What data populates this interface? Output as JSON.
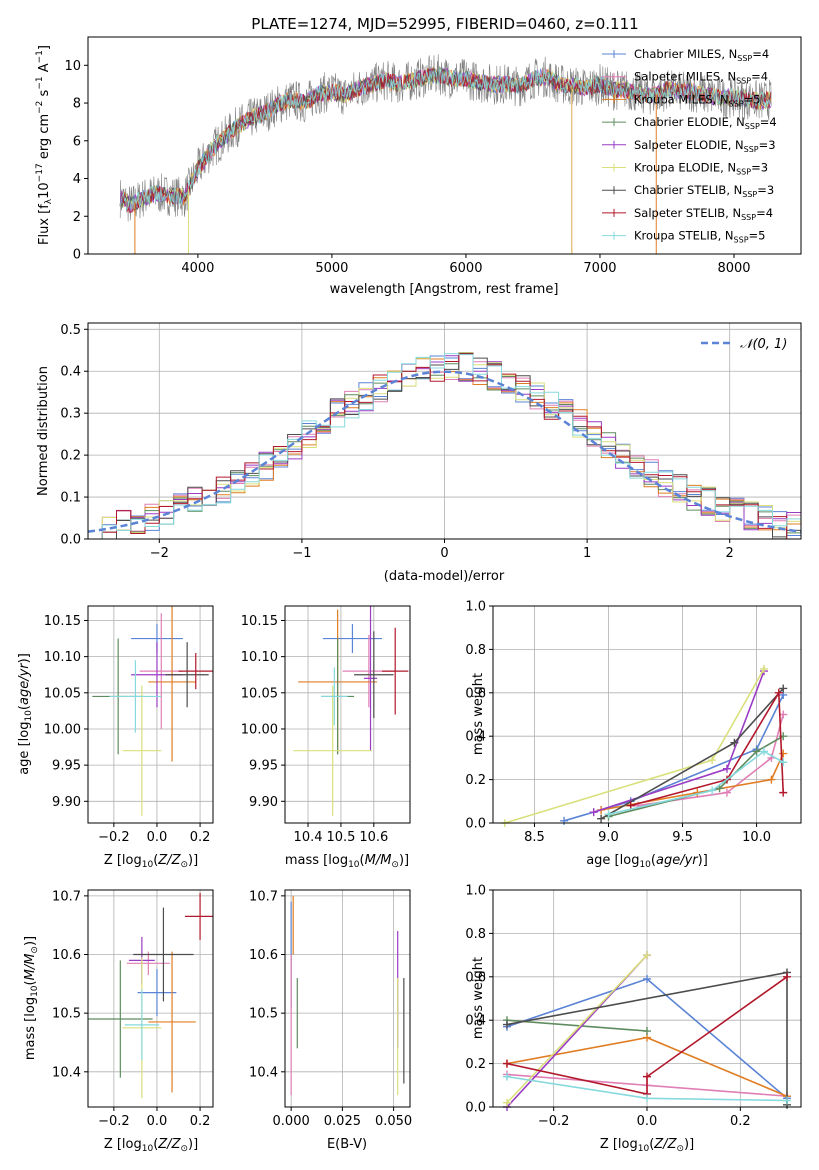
{
  "figure": {
    "title": "PLATE=1274, MJD=52995, FIBERID=0460, z=0.111"
  },
  "models": [
    {
      "name": "Chabrier MILES, N$_{SSP}$=4",
      "label_main": "Chabrier MILES, N",
      "label_sub": "SSP",
      "label_tail": "=4",
      "color": "#5b84d6"
    },
    {
      "name": "Salpeter MILES, N$_{SSP}$=4",
      "label_main": "Salpeter MILES, N",
      "label_sub": "SSP",
      "label_tail": "=4",
      "color": "#e07fb5"
    },
    {
      "name": "Kroupa MILES, N$_{SSP}$=5",
      "label_main": "Kroupa MILES, N",
      "label_sub": "SSP",
      "label_tail": "=5",
      "color": "#e07d22"
    },
    {
      "name": "Chabrier ELODIE, N$_{SSP}$=4",
      "label_main": "Chabrier ELODIE, N",
      "label_sub": "SSP",
      "label_tail": "=4",
      "color": "#5f8c5f"
    },
    {
      "name": "Salpeter ELODIE, N$_{SSP}$=3",
      "label_main": "Salpeter ELODIE, N",
      "label_sub": "SSP",
      "label_tail": "=3",
      "color": "#9b3cc4"
    },
    {
      "name": "Kroupa ELODIE, N$_{SSP}$=3",
      "label_main": "Kroupa ELODIE, N",
      "label_sub": "SSP",
      "label_tail": "=3",
      "color": "#d9e07a"
    },
    {
      "name": "Chabrier STELIB, N$_{SSP}$=3",
      "label_main": "Chabrier STELIB, N",
      "label_sub": "SSP",
      "label_tail": "=3",
      "color": "#4d4d4d"
    },
    {
      "name": "Salpeter STELIB, N$_{SSP}$=4",
      "label_main": "Salpeter STELIB, N",
      "label_sub": "SSP",
      "label_tail": "=4",
      "color": "#b2182b"
    },
    {
      "name": "Kroupa STELIB, N$_{SSP}$=5",
      "label_main": "Kroupa STELIB, N",
      "label_sub": "SSP",
      "label_tail": "=5",
      "color": "#86d9dd"
    }
  ],
  "chart_data": [
    {
      "id": "spectrum",
      "type": "line",
      "xlabel": "wavelength [Angstrom, rest frame]",
      "ylabel": "Flux [f$_\\lambda$10$^{-17}$ erg cm$^{-2}$ s$^{-1}$ A$^{-1}$]",
      "ylabel_parts": [
        "Flux [f",
        "λ",
        "10",
        "−17",
        " erg cm",
        "−2",
        " s",
        "−1",
        " A",
        "−1",
        "]"
      ],
      "xlim": [
        3180,
        8500
      ],
      "ylim": [
        0,
        11.5
      ],
      "xticks": [
        4000,
        5000,
        6000,
        7000,
        8000
      ],
      "yticks": [
        0,
        2,
        4,
        6,
        8,
        10
      ],
      "legend": "top-right",
      "data_color": "#808080",
      "data_envelope": {
        "x": [
          3420,
          3500,
          3600,
          3700,
          3800,
          3900,
          4000,
          4100,
          4200,
          4300,
          4400,
          4500,
          4600,
          4700,
          4800,
          4900,
          5000,
          5100,
          5200,
          5300,
          5400,
          5500,
          5600,
          5700,
          5800,
          5900,
          6000,
          6100,
          6200,
          6300,
          6400,
          6500,
          6600,
          6700,
          6800,
          6900,
          7000,
          7100,
          7200,
          7300,
          7400,
          7500,
          7600,
          7700,
          7800,
          7900,
          8000,
          8100,
          8200,
          8280
        ],
        "y": [
          3.0,
          2.6,
          3.0,
          3.2,
          3.1,
          3.0,
          4.5,
          5.5,
          6.2,
          6.8,
          7.2,
          7.5,
          7.9,
          8.2,
          8.0,
          8.5,
          8.6,
          8.4,
          8.8,
          9.0,
          9.2,
          9.0,
          9.2,
          9.4,
          9.5,
          9.3,
          9.3,
          9.1,
          9.0,
          9.0,
          8.9,
          9.3,
          9.4,
          9.0,
          8.9,
          8.8,
          9.0,
          8.7,
          8.7,
          8.5,
          8.4,
          8.7,
          8.6,
          8.6,
          8.4,
          8.3,
          8.3,
          8.2,
          8.1,
          8.2
        ]
      }
    },
    {
      "id": "residuals",
      "type": "area",
      "xlabel": "(data-model)/error",
      "ylabel": "Normed distribution",
      "xlim": [
        -2.5,
        2.5
      ],
      "ylim": [
        0,
        0.515
      ],
      "xticks": [
        -2,
        -1,
        0,
        1,
        2
      ],
      "yticks": [
        0.0,
        0.1,
        0.2,
        0.3,
        0.4,
        0.5
      ],
      "grid": true,
      "legend": "top-right",
      "legend_label": "𝒩(0, 1)",
      "bin_edges_start": -2.5,
      "bin_width": 0.1,
      "hist_mean": [
        0.02,
        0.025,
        0.035,
        0.045,
        0.055,
        0.065,
        0.075,
        0.09,
        0.105,
        0.12,
        0.135,
        0.155,
        0.175,
        0.2,
        0.225,
        0.25,
        0.275,
        0.3,
        0.32,
        0.34,
        0.36,
        0.375,
        0.39,
        0.4,
        0.405,
        0.41,
        0.41,
        0.4,
        0.39,
        0.375,
        0.36,
        0.34,
        0.32,
        0.3,
        0.275,
        0.25,
        0.225,
        0.2,
        0.175,
        0.155,
        0.135,
        0.12,
        0.1,
        0.09,
        0.075,
        0.065,
        0.055,
        0.045,
        0.035,
        0.03
      ]
    },
    {
      "id": "age-vs-z",
      "type": "scatter",
      "xlabel": "Z [log$_{10}$(Z/Z$_\\odot$)]",
      "ylabel": "age  [log$_{10}$(age/yr)]",
      "xlim": [
        -0.32,
        0.26
      ],
      "ylim": [
        9.87,
        10.17
      ],
      "xticks": [
        -0.2,
        0.0,
        0.2
      ],
      "yticks": [
        9.9,
        9.95,
        10.0,
        10.05,
        10.1,
        10.15
      ],
      "grid": true,
      "points": [
        {
          "x": 0.0,
          "y": 10.125,
          "xerr": 0.12,
          "yerr": 0.02
        },
        {
          "x": 0.02,
          "y": 10.08,
          "xerr": 0.1,
          "yerr": 0.08
        },
        {
          "x": 0.07,
          "y": 10.065,
          "xerr": 0.11,
          "yerr": 0.11
        },
        {
          "x": -0.18,
          "y": 10.045,
          "xerr": 0.12,
          "yerr": 0.08
        },
        {
          "x": 0.0,
          "y": 10.075,
          "xerr": 0.12,
          "yerr": 0.045
        },
        {
          "x": -0.07,
          "y": 9.97,
          "xerr": 0.09,
          "yerr": 0.09
        },
        {
          "x": 0.14,
          "y": 10.075,
          "xerr": 0.1,
          "yerr": 0.045
        },
        {
          "x": 0.18,
          "y": 10.08,
          "xerr": 0.08,
          "yerr": 0.025
        },
        {
          "x": -0.1,
          "y": 10.045,
          "xerr": 0.12,
          "yerr": 0.05
        }
      ]
    },
    {
      "id": "age-vs-mass",
      "type": "scatter",
      "xlabel": "mass [log$_{10}$(M/M$_\\odot$)]",
      "ylabel": "",
      "xlim": [
        10.33,
        10.71
      ],
      "ylim": [
        9.87,
        10.17
      ],
      "xticks": [
        10.4,
        10.5,
        10.6
      ],
      "yticks": [
        9.9,
        9.95,
        10.0,
        10.05,
        10.1,
        10.15
      ],
      "grid": true,
      "points": [
        {
          "x": 10.535,
          "y": 10.125,
          "xerr": 0.09,
          "yerr": 0.02
        },
        {
          "x": 10.585,
          "y": 10.08,
          "xerr": 0.08,
          "yerr": 0.05
        },
        {
          "x": 10.49,
          "y": 10.065,
          "xerr": 0.12,
          "yerr": 0.1
        },
        {
          "x": 10.49,
          "y": 10.045,
          "xerr": 0.05,
          "yerr": 0.08
        },
        {
          "x": 10.59,
          "y": 10.07,
          "xerr": 0.02,
          "yerr": 0.1
        },
        {
          "x": 10.475,
          "y": 9.97,
          "xerr": 0.12,
          "yerr": 0.09
        },
        {
          "x": 10.6,
          "y": 10.075,
          "xerr": 0.06,
          "yerr": 0.06
        },
        {
          "x": 10.665,
          "y": 10.08,
          "xerr": 0.04,
          "yerr": 0.06
        },
        {
          "x": 10.48,
          "y": 10.045,
          "xerr": 0.04,
          "yerr": 0.04
        }
      ]
    },
    {
      "id": "weight-vs-age",
      "type": "line",
      "xlabel": "age  [log$_{10}$(age/yr)]",
      "ylabel": "mass weight",
      "xlim": [
        8.22,
        10.3
      ],
      "ylim": [
        0,
        1.0
      ],
      "xticks": [
        8.5,
        9.0,
        9.5,
        10.0
      ],
      "yticks": [
        0.0,
        0.2,
        0.4,
        0.6,
        0.8,
        1.0
      ],
      "grid": true,
      "series": [
        {
          "x": [
            8.7,
            9.15,
            10.0,
            10.18
          ],
          "y": [
            0.01,
            0.1,
            0.34,
            0.59
          ]
        },
        {
          "x": [
            9.2,
            9.8,
            10.1,
            10.18
          ],
          "y": [
            0.08,
            0.14,
            0.3,
            0.5
          ]
        },
        {
          "x": [
            8.95,
            9.6,
            10.1,
            10.18
          ],
          "y": [
            0.06,
            0.14,
            0.2,
            0.32
          ]
        },
        {
          "x": [
            9.0,
            9.75,
            10.0,
            10.18
          ],
          "y": [
            0.03,
            0.16,
            0.33,
            0.4
          ]
        },
        {
          "x": [
            8.9,
            9.8,
            10.05
          ],
          "y": [
            0.05,
            0.25,
            0.7
          ]
        },
        {
          "x": [
            8.3,
            9.7,
            10.05
          ],
          "y": [
            0.0,
            0.29,
            0.71
          ]
        },
        {
          "x": [
            8.95,
            9.85,
            10.18
          ],
          "y": [
            0.02,
            0.37,
            0.62
          ]
        },
        {
          "x": [
            9.15,
            9.8,
            10.15,
            10.18
          ],
          "y": [
            0.08,
            0.2,
            0.6,
            0.14
          ]
        },
        {
          "x": [
            9.0,
            9.7,
            10.05,
            10.18
          ],
          "y": [
            0.04,
            0.15,
            0.33,
            0.28
          ]
        }
      ]
    },
    {
      "id": "mass-vs-z",
      "type": "scatter",
      "xlabel": "Z [log$_{10}$(Z/Z$_\\odot$)]",
      "ylabel": "mass [log$_{10}$(M/M$_\\odot$)]",
      "xlim": [
        -0.32,
        0.26
      ],
      "ylim": [
        10.34,
        10.71
      ],
      "xticks": [
        -0.2,
        0.0,
        0.2
      ],
      "yticks": [
        10.4,
        10.5,
        10.6,
        10.7
      ],
      "grid": true,
      "points": [
        {
          "x": 0.0,
          "y": 10.535,
          "xerr": 0.09,
          "yerr": 0.04
        },
        {
          "x": -0.04,
          "y": 10.585,
          "xerr": 0.1,
          "yerr": 0.02
        },
        {
          "x": 0.07,
          "y": 10.485,
          "xerr": 0.11,
          "yerr": 0.12
        },
        {
          "x": -0.17,
          "y": 10.49,
          "xerr": 0.15,
          "yerr": 0.1
        },
        {
          "x": -0.07,
          "y": 10.59,
          "xerr": 0.06,
          "yerr": 0.04
        },
        {
          "x": -0.07,
          "y": 10.475,
          "xerr": 0.09,
          "yerr": 0.12
        },
        {
          "x": 0.03,
          "y": 10.6,
          "xerr": 0.14,
          "yerr": 0.08
        },
        {
          "x": 0.2,
          "y": 10.665,
          "xerr": 0.07,
          "yerr": 0.04
        },
        {
          "x": -0.07,
          "y": 10.48,
          "xerr": 0.08,
          "yerr": 0.06
        }
      ]
    },
    {
      "id": "mass-vs-ebv",
      "type": "scatter",
      "xlabel": "E(B-V)",
      "ylabel": "",
      "xlim": [
        -0.003,
        0.058
      ],
      "ylim": [
        10.34,
        10.71
      ],
      "xticks": [
        0.0,
        0.025,
        0.05
      ],
      "yticks": [
        10.4,
        10.5,
        10.6,
        10.7
      ],
      "grid": true,
      "points": [
        {
          "x": 0.0,
          "y": 10.6,
          "yerr": 0.09
        },
        {
          "x": 0.0,
          "y": 10.48,
          "yerr": 0.12
        },
        {
          "x": 0.001,
          "y": 10.65,
          "yerr": 0.05
        },
        {
          "x": 0.003,
          "y": 10.5,
          "yerr": 0.06
        },
        {
          "x": 0.052,
          "y": 10.54,
          "yerr": 0.1
        },
        {
          "x": 0.052,
          "y": 10.46,
          "yerr": 0.1
        },
        {
          "x": 0.055,
          "y": 10.47,
          "yerr": 0.09
        }
      ]
    },
    {
      "id": "weight-vs-z",
      "type": "line",
      "xlabel": "Z [log$_{10}$(Z/Z$_\\odot$)]",
      "ylabel": "mass weight",
      "xlim": [
        -0.33,
        0.33
      ],
      "ylim": [
        0,
        1.0
      ],
      "xticks": [
        -0.2,
        0.0,
        0.2
      ],
      "yticks": [
        0.0,
        0.2,
        0.4,
        0.6,
        0.8,
        1.0
      ],
      "grid": true,
      "series": [
        {
          "x": [
            -0.3,
            0.0,
            0.3
          ],
          "y": [
            0.37,
            0.59,
            0.04
          ]
        },
        {
          "x": [
            -0.3,
            0.0,
            0.3
          ],
          "y": [
            0.15,
            0.1,
            0.05
          ]
        },
        {
          "x": [
            -0.3,
            0.0,
            0.3
          ],
          "y": [
            0.2,
            0.32,
            0.05
          ]
        },
        {
          "x": [
            -0.3,
            0.0
          ],
          "y": [
            0.4,
            0.35
          ]
        },
        {
          "x": [
            -0.3,
            0.0
          ],
          "y": [
            0.0,
            0.7
          ]
        },
        {
          "x": [
            -0.3,
            0.0
          ],
          "y": [
            0.02,
            0.7
          ]
        },
        {
          "x": [
            -0.3,
            0.3,
            0.3
          ],
          "y": [
            0.38,
            0.62,
            0.01
          ]
        },
        {
          "x": [
            -0.3,
            0.0,
            0.0,
            0.3
          ],
          "y": [
            0.2,
            0.06,
            0.14,
            0.6
          ]
        },
        {
          "x": [
            -0.3,
            0.0,
            0.3
          ],
          "y": [
            0.14,
            0.04,
            0.03
          ]
        }
      ]
    }
  ]
}
